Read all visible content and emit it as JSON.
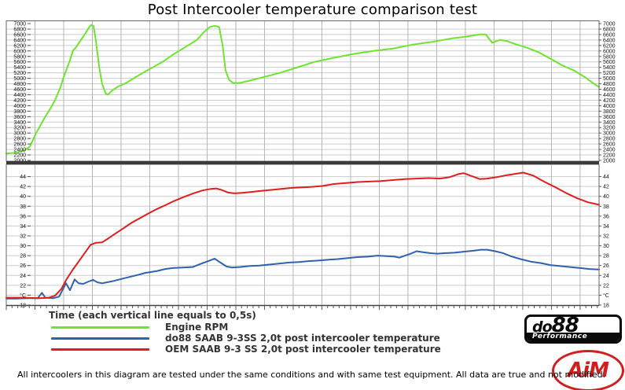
{
  "title": "Post Intercooler temperature comparison test",
  "xlabel": "Time (each vertical line equals to 0,5s)",
  "footnote": "All intercoolers in this diagram are tested under the same conditions and with same test equipment. All data are true and not modified.",
  "legend": [
    {
      "label": "Engine RPM",
      "color": "#6fe42f"
    },
    {
      "label": "do88 SAAB 9-3SS 2,0t post intercooler temperature",
      "color": "#2f62ae"
    },
    {
      "label": "OEM SAAB 9-3 SS 2,0t post intercooler temperature",
      "color": "#e11d1d"
    }
  ],
  "logos": {
    "do88_main_small": "do",
    "do88_main_big": "88",
    "do88_sub": "Performance",
    "aim": "AiM"
  },
  "colors": {
    "grid_h": "#cccccc",
    "grid_v": "#b5b5b5",
    "panel_border": "#666666",
    "divider": "#3b3b3b",
    "tick_text": "#111111"
  },
  "chart_data": {
    "type": "line",
    "title": "Post Intercooler temperature comparison test",
    "x_unit": "s",
    "x_note": "each vertical gridline equals 0,5 s",
    "x_range": [
      0,
      10.33
    ],
    "x_gridline_interval_s": 0.5,
    "x_minor_tick_s": 0.1,
    "legend_position": "bottom-left",
    "panels": [
      {
        "id": "rpm",
        "ylim": [
          2000,
          7000
        ],
        "tick_step": 200,
        "y_tick_values": [
          7000,
          6800,
          6600,
          6400,
          6200,
          6000,
          5800,
          5600,
          5400,
          5200,
          5000,
          4800,
          4600,
          4400,
          4200,
          4000,
          3800,
          3600,
          3400,
          3200,
          3000,
          2800,
          2600,
          2400,
          2200,
          2000
        ],
        "y_tick_labels": [
          "7000",
          "6800",
          "6600",
          "6400",
          "6200",
          "6000",
          "5800",
          "5600",
          "5400",
          "5200",
          "5000",
          "4800",
          "4600",
          "4400",
          "4200",
          "4000",
          "3800",
          "3600",
          "3400",
          "3200",
          "3000",
          "2800",
          "2600",
          "2400",
          "2200",
          "2000"
        ],
        "series": [
          {
            "name": "Engine RPM",
            "color": "#6fe42f",
            "width": 2,
            "points": [
              [
                0,
                2250
              ],
              [
                0.16,
                2280
              ],
              [
                0.3,
                2350
              ],
              [
                0.41,
                2500
              ],
              [
                0.52,
                3000
              ],
              [
                0.6,
                3300
              ],
              [
                0.68,
                3600
              ],
              [
                0.77,
                3900
              ],
              [
                0.85,
                4200
              ],
              [
                0.93,
                4600
              ],
              [
                1.01,
                5100
              ],
              [
                1.1,
                5600
              ],
              [
                1.16,
                6000
              ],
              [
                1.22,
                6150
              ],
              [
                1.3,
                6400
              ],
              [
                1.38,
                6650
              ],
              [
                1.44,
                6850
              ],
              [
                1.48,
                6950
              ],
              [
                1.52,
                6920
              ],
              [
                1.56,
                6400
              ],
              [
                1.62,
                5400
              ],
              [
                1.67,
                4800
              ],
              [
                1.73,
                4450
              ],
              [
                1.77,
                4400
              ],
              [
                1.84,
                4550
              ],
              [
                1.95,
                4700
              ],
              [
                2.08,
                4820
              ],
              [
                2.29,
                5090
              ],
              [
                2.49,
                5330
              ],
              [
                2.7,
                5570
              ],
              [
                2.9,
                5860
              ],
              [
                3.11,
                6130
              ],
              [
                3.32,
                6400
              ],
              [
                3.45,
                6700
              ],
              [
                3.55,
                6880
              ],
              [
                3.64,
                6920
              ],
              [
                3.71,
                6870
              ],
              [
                3.77,
                6200
              ],
              [
                3.82,
                5300
              ],
              [
                3.88,
                4950
              ],
              [
                3.95,
                4830
              ],
              [
                4.07,
                4830
              ],
              [
                4.27,
                4930
              ],
              [
                4.55,
                5080
              ],
              [
                4.82,
                5230
              ],
              [
                5.1,
                5420
              ],
              [
                5.37,
                5600
              ],
              [
                5.71,
                5750
              ],
              [
                6.05,
                5890
              ],
              [
                6.4,
                6000
              ],
              [
                6.74,
                6090
              ],
              [
                7.08,
                6230
              ],
              [
                7.42,
                6330
              ],
              [
                7.77,
                6460
              ],
              [
                8,
                6520
              ],
              [
                8.18,
                6580
              ],
              [
                8.27,
                6610
              ],
              [
                8.36,
                6600
              ],
              [
                8.41,
                6450
              ],
              [
                8.47,
                6300
              ],
              [
                8.53,
                6350
              ],
              [
                8.6,
                6400
              ],
              [
                8.73,
                6360
              ],
              [
                8.86,
                6260
              ],
              [
                9.07,
                6120
              ],
              [
                9.27,
                5960
              ],
              [
                9.48,
                5720
              ],
              [
                9.68,
                5480
              ],
              [
                9.89,
                5290
              ],
              [
                10.1,
                5020
              ],
              [
                10.23,
                4820
              ],
              [
                10.33,
                4680
              ]
            ]
          }
        ]
      },
      {
        "id": "temperature",
        "unit": "°C",
        "ylim": [
          18,
          46
        ],
        "tick_step": 2,
        "y_tick_values": [
          44,
          42,
          40,
          38,
          36,
          34,
          32,
          30,
          28,
          26,
          24,
          22,
          20,
          18
        ],
        "y_tick_labels": [
          "44",
          "42",
          "40",
          "38",
          "36",
          "34",
          "32",
          "30",
          "28",
          "26",
          "24",
          "22",
          "°C",
          "18"
        ],
        "series": [
          {
            "name": "do88 SAAB 9-3SS 2,0t post intercooler temperature",
            "color": "#2f62ae",
            "width": 2,
            "points": [
              [
                0,
                19.3
              ],
              [
                0.16,
                19.3
              ],
              [
                0.37,
                19.4
              ],
              [
                0.55,
                19.4
              ],
              [
                0.62,
                20.5
              ],
              [
                0.68,
                19.5
              ],
              [
                0.82,
                19.4
              ],
              [
                0.92,
                19.7
              ],
              [
                0.99,
                21.3
              ],
              [
                1.04,
                22.4
              ],
              [
                1.11,
                21
              ],
              [
                1.19,
                23.2
              ],
              [
                1.26,
                22.4
              ],
              [
                1.34,
                22.3
              ],
              [
                1.42,
                22.7
              ],
              [
                1.51,
                23.1
              ],
              [
                1.59,
                22.6
              ],
              [
                1.67,
                22.4
              ],
              [
                1.75,
                22.6
              ],
              [
                1.88,
                22.9
              ],
              [
                2.01,
                23.3
              ],
              [
                2.15,
                23.7
              ],
              [
                2.29,
                24.1
              ],
              [
                2.42,
                24.5
              ],
              [
                2.63,
                24.9
              ],
              [
                2.77,
                25.3
              ],
              [
                2.9,
                25.5
              ],
              [
                3.07,
                25.6
              ],
              [
                3.25,
                25.7
              ],
              [
                3.38,
                26.3
              ],
              [
                3.52,
                26.9
              ],
              [
                3.63,
                27.4
              ],
              [
                3.73,
                26.6
              ],
              [
                3.84,
                25.8
              ],
              [
                3.93,
                25.6
              ],
              [
                4.07,
                25.7
              ],
              [
                4.25,
                25.9
              ],
              [
                4.41,
                26
              ],
              [
                4.58,
                26.2
              ],
              [
                4.75,
                26.4
              ],
              [
                4.93,
                26.6
              ],
              [
                5.1,
                26.7
              ],
              [
                5.26,
                26.9
              ],
              [
                5.44,
                27
              ],
              [
                5.62,
                27.2
              ],
              [
                5.78,
                27.3
              ],
              [
                5.95,
                27.5
              ],
              [
                6.12,
                27.7
              ],
              [
                6.3,
                27.8
              ],
              [
                6.47,
                28
              ],
              [
                6.63,
                27.9
              ],
              [
                6.77,
                27.8
              ],
              [
                6.85,
                27.6
              ],
              [
                6.95,
                28
              ],
              [
                7.05,
                28.4
              ],
              [
                7.15,
                28.9
              ],
              [
                7.26,
                28.7
              ],
              [
                7.4,
                28.5
              ],
              [
                7.51,
                28.4
              ],
              [
                7.63,
                28.5
              ],
              [
                7.81,
                28.6
              ],
              [
                7.97,
                28.8
              ],
              [
                8.14,
                29
              ],
              [
                8.27,
                29.2
              ],
              [
                8.38,
                29.2
              ],
              [
                8.52,
                28.9
              ],
              [
                8.66,
                28.5
              ],
              [
                8.79,
                27.9
              ],
              [
                8.96,
                27.3
              ],
              [
                9.14,
                26.8
              ],
              [
                9.32,
                26.5
              ],
              [
                9.48,
                26.1
              ],
              [
                9.64,
                25.9
              ],
              [
                9.82,
                25.7
              ],
              [
                10,
                25.5
              ],
              [
                10.16,
                25.3
              ],
              [
                10.33,
                25.2
              ]
            ]
          },
          {
            "name": "OEM SAAB 9-3 SS 2,0t post intercooler temperature",
            "color": "#e11d1d",
            "width": 2,
            "points": [
              [
                0,
                19.5
              ],
              [
                0.3,
                19.5
              ],
              [
                0.58,
                19.4
              ],
              [
                0.74,
                19.5
              ],
              [
                0.85,
                19.9
              ],
              [
                0.96,
                21.3
              ],
              [
                1.05,
                23.2
              ],
              [
                1.15,
                25
              ],
              [
                1.26,
                26.8
              ],
              [
                1.37,
                28.6
              ],
              [
                1.47,
                30.2
              ],
              [
                1.56,
                30.6
              ],
              [
                1.67,
                30.7
              ],
              [
                1.78,
                31.5
              ],
              [
                1.92,
                32.6
              ],
              [
                2.05,
                33.6
              ],
              [
                2.19,
                34.7
              ],
              [
                2.33,
                35.6
              ],
              [
                2.47,
                36.5
              ],
              [
                2.6,
                37.3
              ],
              [
                2.77,
                38.2
              ],
              [
                2.93,
                39.1
              ],
              [
                3.1,
                39.9
              ],
              [
                3.26,
                40.6
              ],
              [
                3.42,
                41.2
              ],
              [
                3.56,
                41.5
              ],
              [
                3.66,
                41.6
              ],
              [
                3.75,
                41.3
              ],
              [
                3.86,
                40.8
              ],
              [
                3.97,
                40.6
              ],
              [
                4.11,
                40.7
              ],
              [
                4.27,
                40.9
              ],
              [
                4.44,
                41.1
              ],
              [
                4.62,
                41.3
              ],
              [
                4.79,
                41.5
              ],
              [
                4.96,
                41.7
              ],
              [
                5.12,
                41.8
              ],
              [
                5.3,
                41.9
              ],
              [
                5.51,
                42.1
              ],
              [
                5.71,
                42.5
              ],
              [
                5.92,
                42.7
              ],
              [
                6.12,
                42.9
              ],
              [
                6.33,
                43
              ],
              [
                6.53,
                43.1
              ],
              [
                6.74,
                43.3
              ],
              [
                6.95,
                43.5
              ],
              [
                7.15,
                43.6
              ],
              [
                7.36,
                43.7
              ],
              [
                7.56,
                43.6
              ],
              [
                7.73,
                43.9
              ],
              [
                7.88,
                44.5
              ],
              [
                7.97,
                44.7
              ],
              [
                8.11,
                44.1
              ],
              [
                8.25,
                43.5
              ],
              [
                8.38,
                43.6
              ],
              [
                8.55,
                43.9
              ],
              [
                8.73,
                44.3
              ],
              [
                8.9,
                44.6
              ],
              [
                9.01,
                44.8
              ],
              [
                9.18,
                44.2
              ],
              [
                9.37,
                43
              ],
              [
                9.56,
                41.9
              ],
              [
                9.75,
                40.7
              ],
              [
                9.95,
                39.6
              ],
              [
                10.14,
                38.8
              ],
              [
                10.33,
                38.3
              ]
            ]
          }
        ]
      }
    ]
  }
}
